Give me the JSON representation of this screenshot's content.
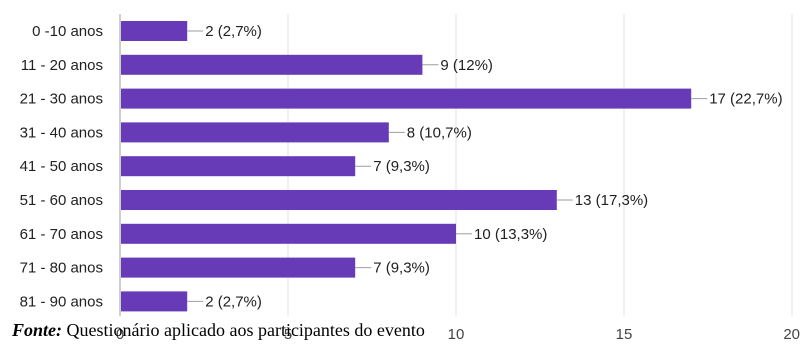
{
  "chart_data": {
    "type": "bar",
    "orientation": "horizontal",
    "categories": [
      "0 -10 anos",
      "11 - 20 anos",
      "21 - 30 anos",
      "31 - 40 anos",
      "41 - 50 anos",
      "51 - 60 anos",
      "61 - 70 anos",
      "71 - 80 anos",
      "81 - 90 anos"
    ],
    "values": [
      2,
      9,
      17,
      8,
      7,
      13,
      10,
      7,
      2
    ],
    "data_labels": [
      "2 (2,7%)",
      "9 (12%)",
      "17 (22,7%)",
      "8 (10,7%)",
      "7 (9,3%)",
      "13 (17,3%)",
      "10 (13,3%)",
      "7 (9,3%)",
      "2 (2,7%)"
    ],
    "x_ticks": [
      0,
      5,
      10,
      15,
      20
    ],
    "xlim": [
      0,
      20
    ],
    "grid": true,
    "bar_color": "#673ab7",
    "title": "",
    "xlabel": "",
    "ylabel": ""
  },
  "caption": {
    "label": "Fonte:",
    "text": " Questionário aplicado aos participantes do evento"
  }
}
